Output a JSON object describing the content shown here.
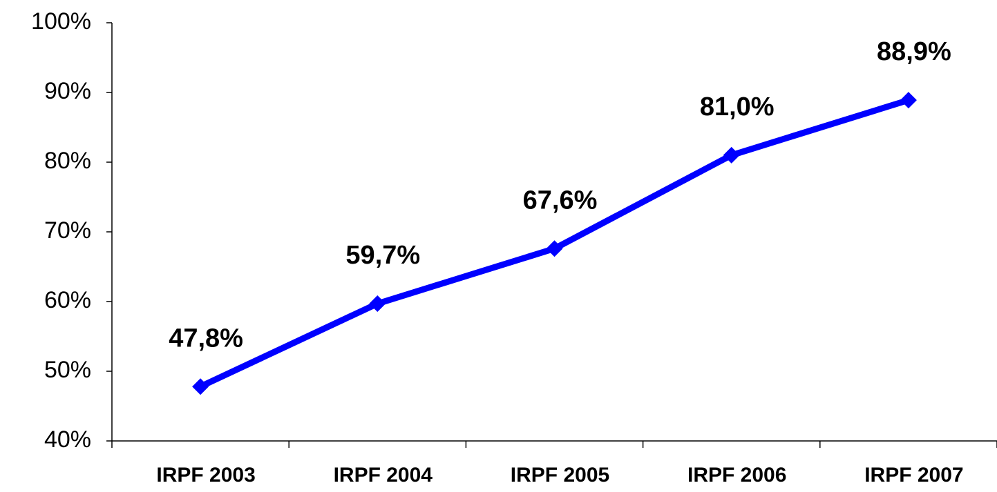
{
  "chart_data": {
    "type": "line",
    "categories": [
      "IRPF 2003",
      "IRPF 2004",
      "IRPF 2005",
      "IRPF 2006",
      "IRPF 2007"
    ],
    "values": [
      47.8,
      59.7,
      67.6,
      81.0,
      88.9
    ],
    "value_labels": [
      "47,8%",
      "59,7%",
      "67,6%",
      "81,0%",
      "88,9%"
    ],
    "color": "#0000ff",
    "ylim": [
      40,
      100
    ],
    "yticks": [
      {
        "value": 40,
        "label": "40%"
      },
      {
        "value": 50,
        "label": "50%"
      },
      {
        "value": 60,
        "label": "60%"
      },
      {
        "value": 70,
        "label": "70%"
      },
      {
        "value": 80,
        "label": "80%"
      },
      {
        "value": 90,
        "label": "90%"
      },
      {
        "value": 100,
        "label": "100%"
      }
    ],
    "grid": false
  }
}
